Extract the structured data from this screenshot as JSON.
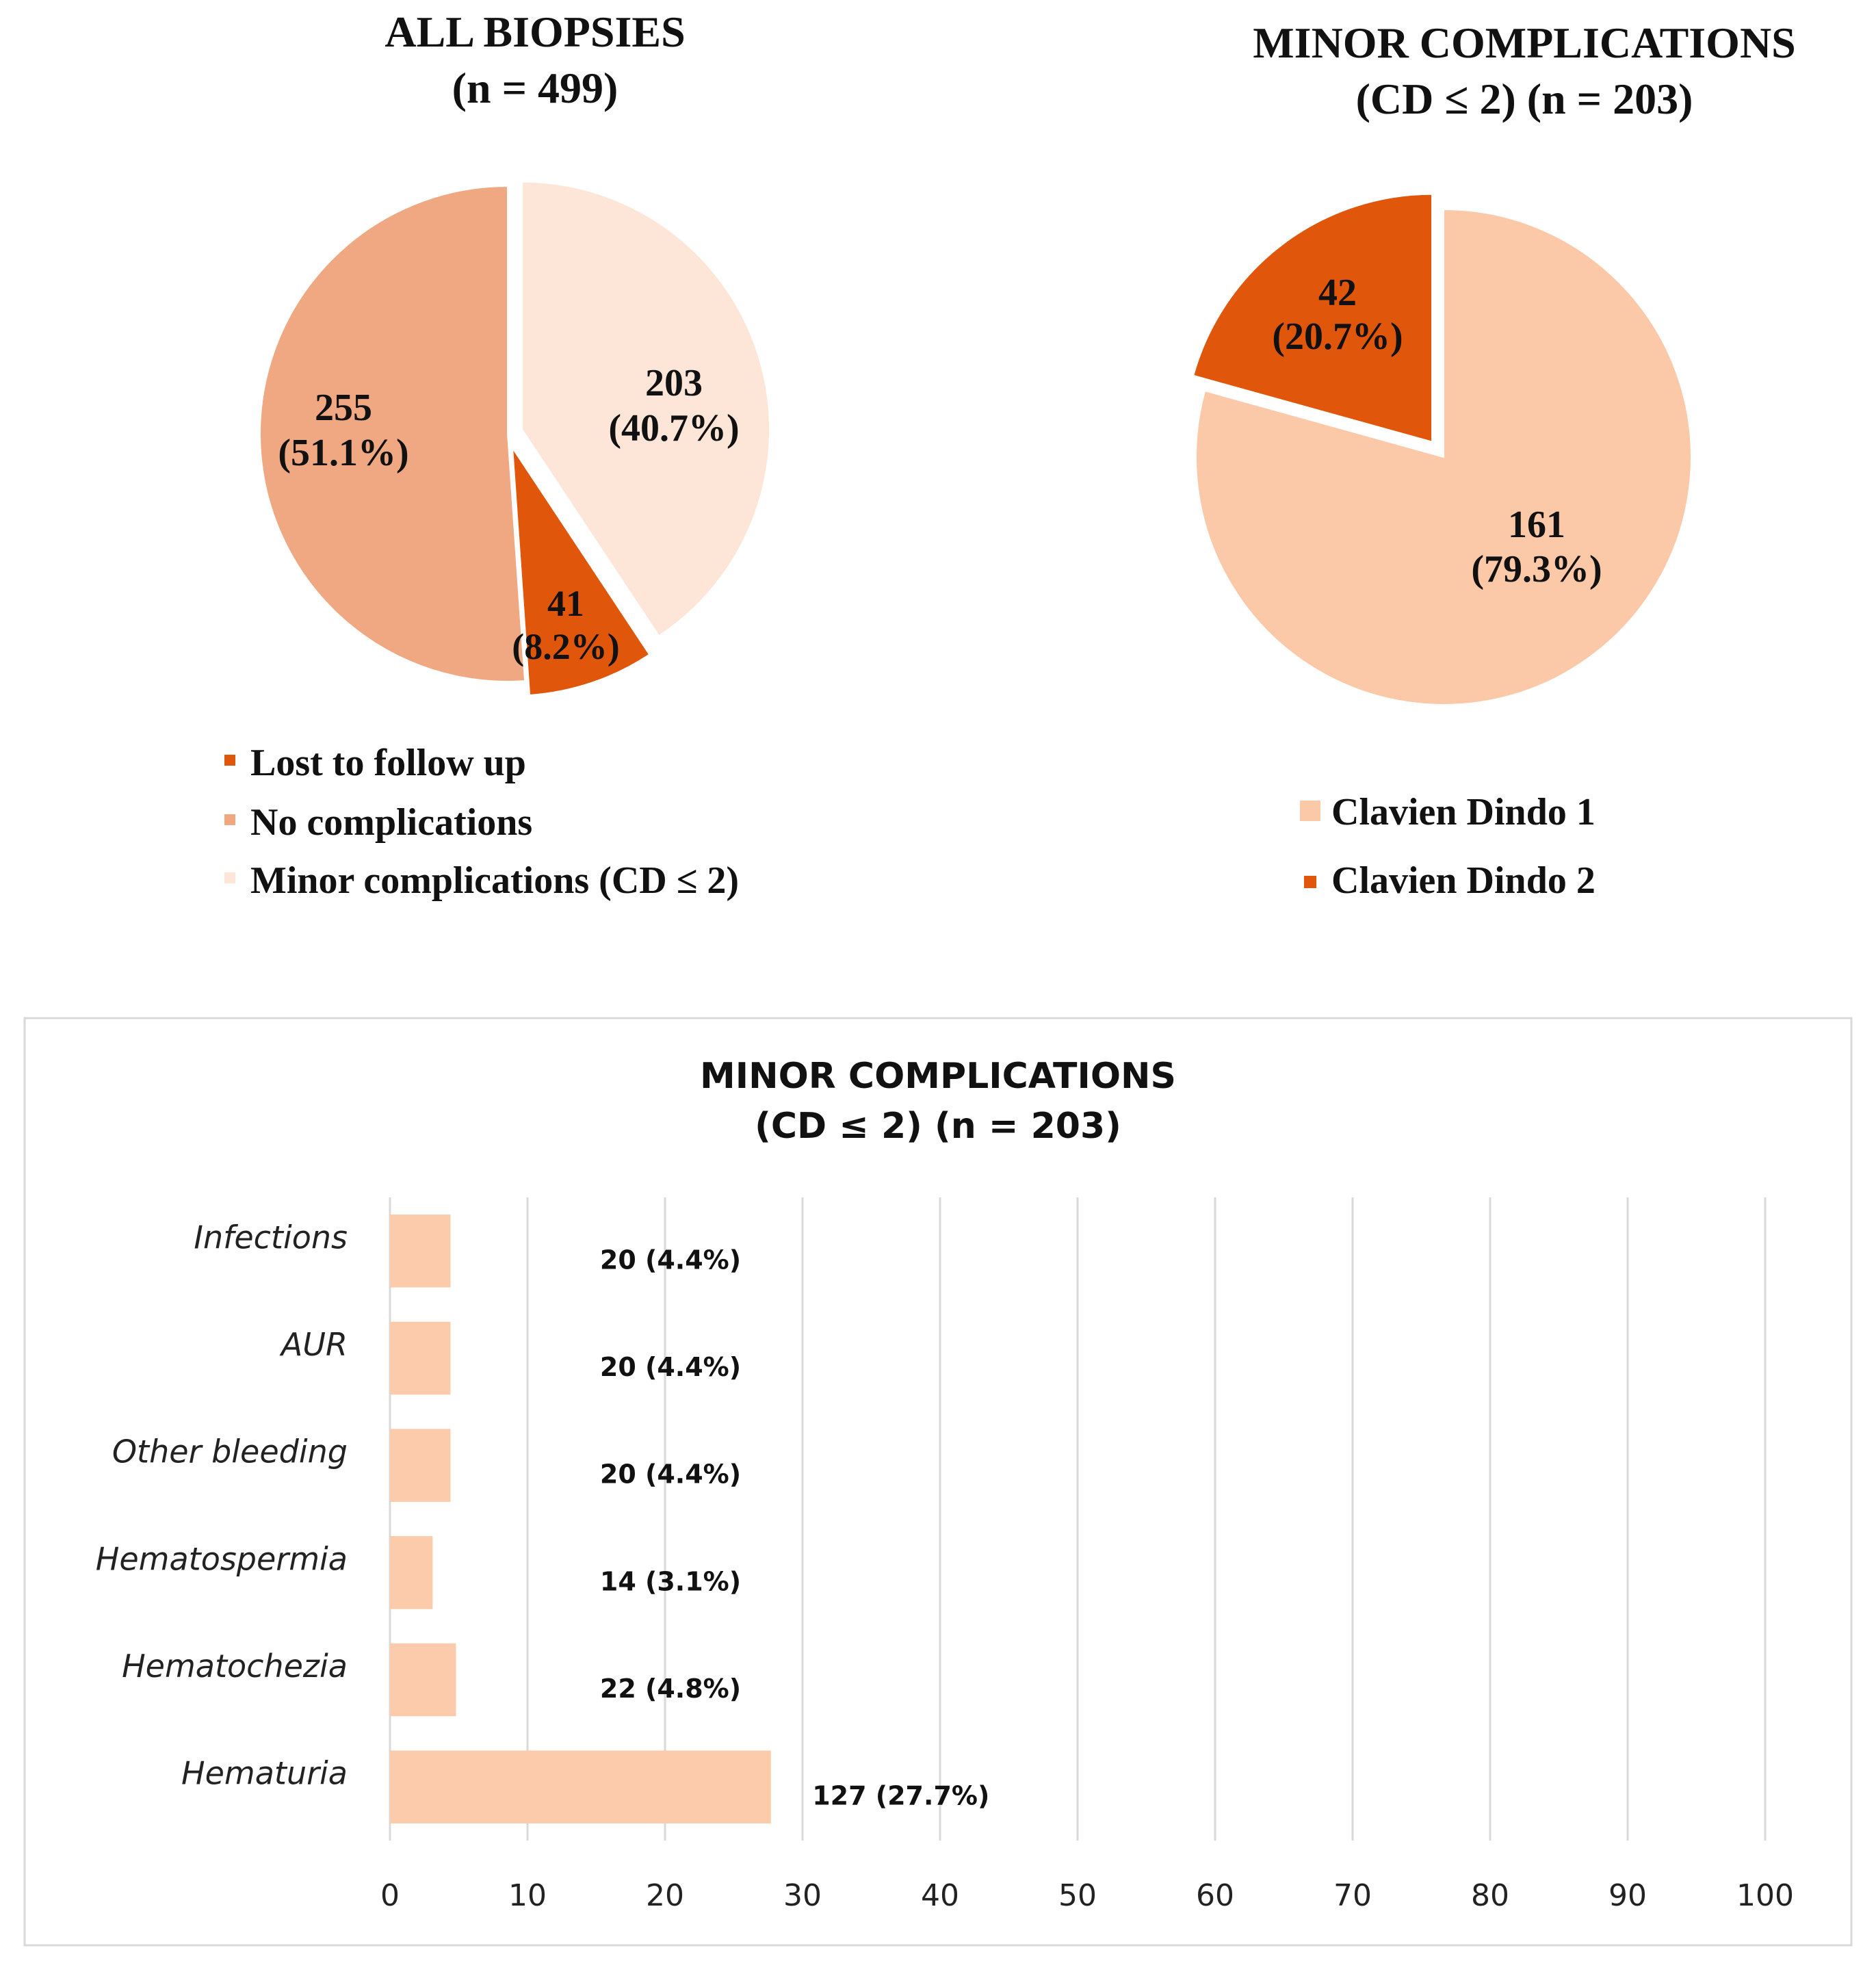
{
  "colors": {
    "dark_orange": "#E0560A",
    "medium_orange": "#F0A882",
    "light_peach": "#FDE6D8",
    "peach": "#FBC8A8",
    "bar_fill": "#FBCBAB",
    "grid": "#D9D9D9",
    "frame": "#D9D9D9"
  },
  "chart_data": [
    {
      "type": "pie",
      "title_line1": "ALL BIOPSIES",
      "title_line2": "(n = 499)",
      "slices": [
        {
          "name": "Lost to follow up",
          "value": 41,
          "value_label": "41",
          "pct_label": "(8.2%)",
          "color": "#E0560A",
          "exploded": true
        },
        {
          "name": "No complications",
          "value": 255,
          "value_label": "255",
          "pct_label": "(51.1%)",
          "color": "#F0A882",
          "exploded": false
        },
        {
          "name": "Minor complications (CD ≤ 2)",
          "value": 203,
          "value_label": "203",
          "pct_label": "(40.7%)",
          "color": "#FDE6D8",
          "exploded": true
        }
      ],
      "legend": [
        "Lost to follow up",
        "No complications",
        "Minor complications (CD ≤ 2)"
      ],
      "legend_position": "bottom-left"
    },
    {
      "type": "pie",
      "title_line1": "MINOR COMPLICATIONS",
      "title_line2": "(CD ≤ 2) (n = 203)",
      "slices": [
        {
          "name": "Clavien Dindo 1",
          "value": 161,
          "value_label": "161",
          "pct_label": "(79.3%)",
          "color": "#FBC8A8",
          "exploded": false
        },
        {
          "name": "Clavien Dindo 2",
          "value": 42,
          "value_label": "42",
          "pct_label": "(20.7%)",
          "color": "#E0560A",
          "exploded": true
        }
      ],
      "legend": [
        "Clavien Dindo 1",
        "Clavien Dindo 2"
      ],
      "legend_position": "bottom"
    },
    {
      "type": "bar",
      "orientation": "horizontal",
      "title_line1": "MINOR COMPLICATIONS",
      "title_line2": "(CD ≤ 2) (n = 203)",
      "categories": [
        "Infections",
        "AUR",
        "Other bleeding",
        "Hematospermia",
        "Hematochezia",
        "Hematuria"
      ],
      "values": [
        4.4,
        4.4,
        4.4,
        3.1,
        4.8,
        27.7
      ],
      "data_labels": [
        "20 (4.4%)",
        "20 (4.4%)",
        "20 (4.4%)",
        "14 (3.1%)",
        "22 (4.8%)",
        "127 (27.7%)"
      ],
      "xlim": [
        0,
        100
      ],
      "xticks": [
        "0",
        "10",
        "20",
        "30",
        "40",
        "50",
        "60",
        "70",
        "80",
        "90",
        "100"
      ],
      "grid": true
    }
  ]
}
